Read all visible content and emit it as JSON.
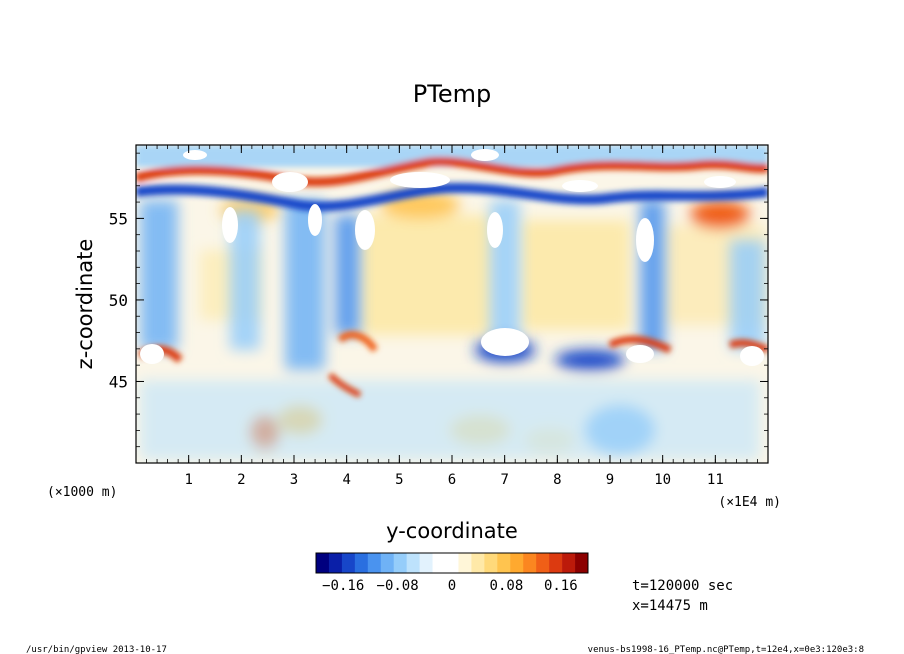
{
  "chart_data": {
    "type": "heatmap",
    "title": "PTemp",
    "xlabel": "y-coordinate",
    "ylabel": "z-coordinate",
    "x_unit_left": "(×1000 m)",
    "x_unit_right": "(×1E4 m)",
    "xlim": [
      0,
      12
    ],
    "ylim": [
      40,
      59.5
    ],
    "x_ticks": [
      "1",
      "2",
      "3",
      "4",
      "5",
      "6",
      "7",
      "8",
      "9",
      "10",
      "11"
    ],
    "y_ticks": [
      "45",
      "50",
      "55"
    ],
    "x_tick_values": [
      1,
      2,
      3,
      4,
      5,
      6,
      7,
      8,
      9,
      10,
      11
    ],
    "y_tick_values": [
      45,
      50,
      55
    ],
    "colorbar": {
      "range": [
        -0.2,
        0.2
      ],
      "labels": [
        "−0.16",
        "−0.08",
        "0",
        "0.08",
        "0.16"
      ],
      "label_values": [
        -0.16,
        -0.08,
        0,
        0.08,
        0.16
      ],
      "colors": [
        "#00007f",
        "#0a1fa8",
        "#1746c9",
        "#2a6fe0",
        "#4a93ef",
        "#6fb2f6",
        "#95cdfa",
        "#bde2fc",
        "#e2f2fd",
        "#ffffff",
        "#ffffff",
        "#fff6d8",
        "#ffe9a8",
        "#ffd97a",
        "#ffc44f",
        "#ffa92f",
        "#fb8620",
        "#f05f17",
        "#dc3a10",
        "#bc1a0a",
        "#8c0000"
      ]
    },
    "features": [
      {
        "y": 11.0,
        "z": 55.5,
        "value": 0.14
      },
      {
        "y": 7.2,
        "z": 57.5,
        "value": -0.12
      },
      {
        "y": 2.5,
        "z": 41.5,
        "value": 0.12
      },
      {
        "y": 6.7,
        "z": 48.0,
        "value": -0.22
      }
    ]
  },
  "info": {
    "time": "t=120000 sec",
    "position": "x=14475  m"
  },
  "footer": {
    "left": "/usr/bin/gpview  2013-10-17",
    "right": "venus-bs1998-16_PTemp.nc@PTemp,t=12e4,x=0e3:120e3:8"
  }
}
